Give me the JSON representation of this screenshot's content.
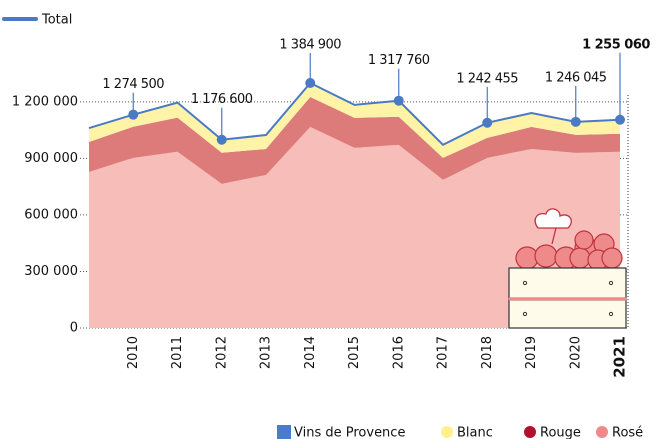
{
  "chart_data": {
    "type": "stacked_area",
    "categories": [
      null,
      "2010",
      "2011",
      "2012",
      "2013",
      "2014",
      "2015",
      "2016",
      "2017",
      "2018",
      "2019",
      "2020",
      "2021"
    ],
    "highlight_category": "2021",
    "series": [
      {
        "name": "Rosé",
        "color": "#f7bdb9",
        "legend_color": "#ef8a8a",
        "values": [
          828000,
          903000,
          935000,
          765000,
          812000,
          1067000,
          956000,
          972000,
          786000,
          903000,
          950000,
          929000,
          935000
        ]
      },
      {
        "name": "Rouge",
        "color": "#dc7b79",
        "legend_color": "#b3102d",
        "values": [
          159000,
          165000,
          181000,
          165000,
          138000,
          159000,
          159000,
          149000,
          117000,
          106000,
          117000,
          96000,
          96000
        ]
      },
      {
        "name": "Blanc",
        "color": "#fff3a8",
        "legend_color": "#fff18a",
        "values": [
          74000,
          64000,
          80000,
          69000,
          74000,
          74000,
          69000,
          85000,
          69000,
          80000,
          74000,
          69000,
          74000
        ]
      }
    ],
    "total": {
      "name": "Total",
      "color": "#4b7ac5",
      "values": [
        1061000,
        1132000,
        1196000,
        999000,
        1024000,
        1300000,
        1184000,
        1206000,
        972000,
        1089000,
        1141000,
        1094000,
        1105000
      ]
    },
    "brand": {
      "name": "Vins de Provence",
      "color": "#4b7cc9"
    },
    "annotations": [
      {
        "x": "2010",
        "label": "1 274 500"
      },
      {
        "x": "2012",
        "label": "1 176 600"
      },
      {
        "x": "2014",
        "label": "1 384 900"
      },
      {
        "x": "2016",
        "label": "1 317 760"
      },
      {
        "x": "2018",
        "label": "1 242 455"
      },
      {
        "x": "2020",
        "label": "1 246 045"
      },
      {
        "x": "2021",
        "label": "1 255 060",
        "bold": true
      }
    ],
    "ylim": [
      0,
      1300000
    ],
    "yticks": [
      0,
      {
        "value": 300000,
        "label": "300 000"
      },
      {
        "value": 600000,
        "label": "600 000"
      },
      {
        "value": 900000,
        "label": "900 000"
      },
      {
        "value": 1200000,
        "label": "1 200 000"
      }
    ],
    "grid": true
  }
}
